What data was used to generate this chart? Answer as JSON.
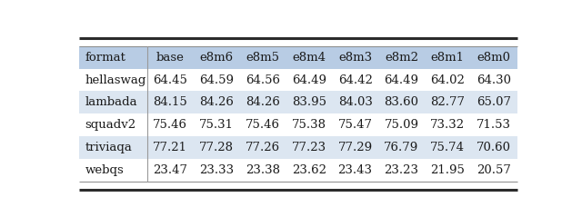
{
  "columns": [
    "format",
    "base",
    "e8m6",
    "e8m5",
    "e8m4",
    "e8m3",
    "e8m2",
    "e8m1",
    "e8m0"
  ],
  "rows": [
    [
      "hellaswag",
      "64.45",
      "64.59",
      "64.56",
      "64.49",
      "64.42",
      "64.49",
      "64.02",
      "64.30"
    ],
    [
      "lambada",
      "84.15",
      "84.26",
      "84.26",
      "83.95",
      "84.03",
      "83.60",
      "82.77",
      "65.07"
    ],
    [
      "squadv2",
      "75.46",
      "75.31",
      "75.46",
      "75.38",
      "75.47",
      "75.09",
      "73.32",
      "71.53"
    ],
    [
      "triviaqa",
      "77.21",
      "77.28",
      "77.26",
      "77.23",
      "77.29",
      "76.79",
      "75.74",
      "70.60"
    ],
    [
      "webqs",
      "23.47",
      "23.33",
      "23.38",
      "23.62",
      "23.43",
      "23.23",
      "21.95",
      "20.57"
    ]
  ],
  "header_bg": "#b8cce4",
  "row_bg_odd": "#dce6f1",
  "row_bg_even": "#ffffff",
  "text_color": "#1a1a1a",
  "border_color_thick": "#2b2b2b",
  "border_color_thin": "#888888",
  "sep_color": "#999999",
  "font_size": 9.5,
  "header_font_size": 9.5,
  "col_widths_rel": [
    1.55,
    1.06,
    1.06,
    1.06,
    1.06,
    1.06,
    1.06,
    1.06,
    1.06
  ]
}
